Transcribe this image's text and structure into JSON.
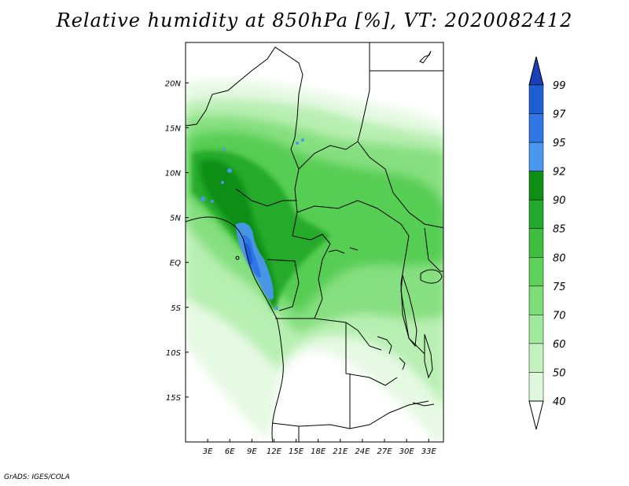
{
  "title": "Relative humidity at 850hPa [%], VT: 2020082412",
  "credit": "GrADS: IGES/COLA",
  "map": {
    "lon_range": [
      0,
      35
    ],
    "lat_range": [
      -20,
      24.5
    ],
    "lat_ticks": [
      {
        "value": 20,
        "label": "20N"
      },
      {
        "value": 15,
        "label": "15N"
      },
      {
        "value": 10,
        "label": "10N"
      },
      {
        "value": 5,
        "label": "5N"
      },
      {
        "value": 0,
        "label": "EQ"
      },
      {
        "value": -5,
        "label": "5S"
      },
      {
        "value": -10,
        "label": "10S"
      },
      {
        "value": -15,
        "label": "15S"
      }
    ],
    "lon_ticks": [
      {
        "value": 3,
        "label": "3E"
      },
      {
        "value": 6,
        "label": "6E"
      },
      {
        "value": 9,
        "label": "9E"
      },
      {
        "value": 12,
        "label": "12E"
      },
      {
        "value": 15,
        "label": "15E"
      },
      {
        "value": 18,
        "label": "18E"
      },
      {
        "value": 21,
        "label": "21E"
      },
      {
        "value": 24,
        "label": "24E"
      },
      {
        "value": 27,
        "label": "27E"
      },
      {
        "value": 30,
        "label": "30E"
      },
      {
        "value": 33,
        "label": "33E"
      }
    ]
  },
  "colorbar": {
    "levels": [
      {
        "label": "99",
        "color": "#1f5fd6"
      },
      {
        "label": "97",
        "color": "#2f77e6"
      },
      {
        "label": "95",
        "color": "#4a97f0"
      },
      {
        "label": "92",
        "color": "#0e8f14"
      },
      {
        "label": "90",
        "color": "#22a82a"
      },
      {
        "label": "85",
        "color": "#3ebd3e"
      },
      {
        "label": "80",
        "color": "#5ed15a"
      },
      {
        "label": "75",
        "color": "#7edd78"
      },
      {
        "label": "70",
        "color": "#a1e99c"
      },
      {
        "label": "60",
        "color": "#c3f2be"
      },
      {
        "label": "50",
        "color": "#ddf8da"
      },
      {
        "label": "40",
        "color": "#f1fcef"
      }
    ],
    "over_color": "#1a3fb8",
    "under_color": "#ffffff"
  }
}
